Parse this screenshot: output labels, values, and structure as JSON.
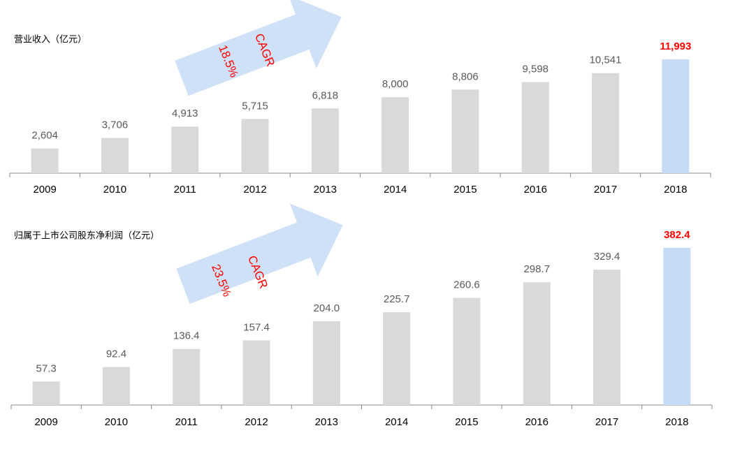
{
  "chart_data": [
    {
      "type": "bar",
      "title": "营业收入（亿元）",
      "categories": [
        "2009",
        "2010",
        "2011",
        "2012",
        "2013",
        "2014",
        "2015",
        "2016",
        "2017",
        "2018"
      ],
      "values": [
        2604,
        3706,
        4913,
        5715,
        6818,
        8000,
        8806,
        9598,
        10541,
        11993
      ],
      "value_labels": [
        "2,604",
        "3,706",
        "4,913",
        "5,715",
        "6,818",
        "8,000",
        "8,806",
        "9,598",
        "10,541",
        "11,993"
      ],
      "color": "#d9d9d9",
      "highlight_color": "#c6dcf6",
      "label_color": "#595959",
      "highlight_label_color": "#ff0000",
      "highlight_last": true,
      "annotation": {
        "label": "CAGR",
        "value": "18.5%",
        "color": "#ff0000",
        "arrow_color": "#cfe1f7"
      }
    },
    {
      "type": "bar",
      "title": "归属于上市公司股东净利润（亿元）",
      "categories": [
        "2009",
        "2010",
        "2011",
        "2012",
        "2013",
        "2014",
        "2015",
        "2016",
        "2017",
        "2018"
      ],
      "values": [
        57.3,
        92.4,
        136.4,
        157.4,
        204.0,
        225.7,
        260.6,
        298.7,
        329.4,
        382.4
      ],
      "value_labels": [
        "57.3",
        "92.4",
        "136.4",
        "157.4",
        "204.0",
        "225.7",
        "260.6",
        "298.7",
        "329.4",
        "382.4"
      ],
      "color": "#d9d9d9",
      "highlight_color": "#c6dcf6",
      "label_color": "#595959",
      "highlight_label_color": "#ff0000",
      "highlight_last": true,
      "annotation": {
        "label": "CAGR",
        "value": "23.5%",
        "color": "#ff0000",
        "arrow_color": "#cfe1f7"
      }
    }
  ]
}
